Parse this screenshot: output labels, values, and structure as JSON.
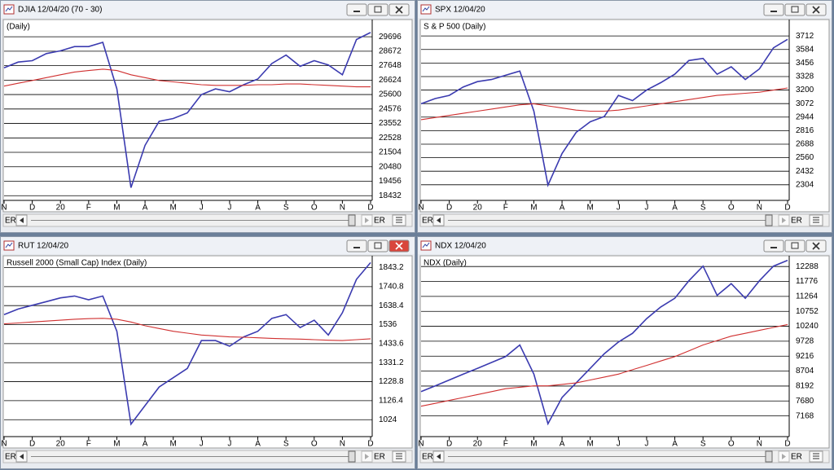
{
  "windows": [
    {
      "title": "DJIA 12/04/20 (70 - 30)",
      "scroll_labels": [
        "ER",
        "ER"
      ]
    },
    {
      "title": "SPX 12/04/20",
      "scroll_labels": [
        "ER",
        "ER"
      ]
    },
    {
      "title": "RUT 12/04/20",
      "scroll_labels": [
        "ER",
        "ER"
      ]
    },
    {
      "title": "NDX 12/04/20",
      "scroll_labels": [
        "ER",
        "ER"
      ]
    }
  ],
  "chart_data": [
    {
      "type": "line",
      "title": "(Daily)",
      "categories": [
        "N",
        null,
        "D",
        null,
        "20",
        null,
        "F",
        null,
        "M",
        null,
        "A",
        null,
        "M",
        null,
        "J",
        null,
        "J",
        null,
        "A",
        null,
        "S",
        null,
        "O",
        null,
        "N",
        null,
        "D"
      ],
      "series": [
        {
          "color": "#3b3bb0",
          "values": [
            27500,
            27900,
            28000,
            28500,
            28700,
            29000,
            29000,
            29300,
            26000,
            19000,
            22000,
            23700,
            23900,
            24300,
            25600,
            26000,
            25800,
            26300,
            26700,
            27800,
            28400,
            27600,
            28000,
            27700,
            27000,
            29500,
            30000
          ]
        },
        {
          "color": "#d03030",
          "values": [
            26200,
            26400,
            26600,
            26800,
            27000,
            27200,
            27300,
            27400,
            27300,
            27000,
            26800,
            26600,
            26500,
            26400,
            26300,
            26250,
            26250,
            26250,
            26300,
            26300,
            26350,
            26350,
            26300,
            26250,
            26200,
            26150,
            26150
          ]
        }
      ],
      "ylim": [
        18100,
        30800
      ],
      "yticks": [
        18432,
        19456,
        20480,
        21504,
        22528,
        23552,
        24576,
        25600,
        26624,
        27648,
        28672,
        29696
      ],
      "grid": true
    },
    {
      "type": "line",
      "title": "S & P 500 (Daily)",
      "categories": [
        "N",
        null,
        "D",
        null,
        "20",
        null,
        "F",
        null,
        "M",
        null,
        "A",
        null,
        "M",
        null,
        "J",
        null,
        "J",
        null,
        "A",
        null,
        "S",
        null,
        "O",
        null,
        "N",
        null,
        "D"
      ],
      "series": [
        {
          "color": "#3b3bb0",
          "values": [
            3070,
            3120,
            3150,
            3230,
            3280,
            3300,
            3340,
            3380,
            3000,
            2300,
            2600,
            2800,
            2900,
            2950,
            3150,
            3100,
            3200,
            3270,
            3350,
            3480,
            3500,
            3350,
            3420,
            3300,
            3400,
            3600,
            3680
          ]
        },
        {
          "color": "#d03030",
          "values": [
            2920,
            2940,
            2960,
            2980,
            3000,
            3020,
            3040,
            3060,
            3070,
            3050,
            3030,
            3010,
            3000,
            3000,
            3010,
            3030,
            3050,
            3070,
            3090,
            3110,
            3130,
            3150,
            3160,
            3170,
            3180,
            3200,
            3220
          ]
        }
      ],
      "ylim": [
        2156,
        3852
      ],
      "yticks": [
        2304,
        2432,
        2560,
        2688,
        2816,
        2944,
        3072,
        3200,
        3328,
        3456,
        3584,
        3712
      ],
      "grid": true
    },
    {
      "type": "line",
      "title": "Russell 2000 (Small Cap) Index (Daily)",
      "categories": [
        "N",
        null,
        "D",
        null,
        "20",
        null,
        "F",
        null,
        "M",
        null,
        "A",
        null,
        "M",
        null,
        "J",
        null,
        "J",
        null,
        "A",
        null,
        "S",
        null,
        "O",
        null,
        "N",
        null,
        "D"
      ],
      "series": [
        {
          "color": "#3b3bb0",
          "values": [
            1590,
            1620,
            1640,
            1660,
            1680,
            1690,
            1670,
            1690,
            1500,
            1000,
            1100,
            1200,
            1250,
            1300,
            1450,
            1450,
            1420,
            1470,
            1500,
            1570,
            1590,
            1520,
            1560,
            1480,
            1600,
            1780,
            1870
          ]
        },
        {
          "color": "#d03030",
          "values": [
            1540,
            1545,
            1550,
            1555,
            1560,
            1565,
            1568,
            1570,
            1565,
            1550,
            1530,
            1515,
            1500,
            1490,
            1480,
            1475,
            1470,
            1468,
            1465,
            1462,
            1460,
            1458,
            1455,
            1452,
            1450,
            1455,
            1460
          ]
        }
      ],
      "ylim": [
        933,
        1898
      ],
      "yticks": [
        1024,
        1126.4,
        1228.8,
        1331.2,
        1433.6,
        1536,
        1638.4,
        1740.8,
        1843.2
      ],
      "grid": true
    },
    {
      "type": "line",
      "title": "NDX (Daily)",
      "categories": [
        "N",
        null,
        "D",
        null,
        "20",
        null,
        "F",
        null,
        "M",
        null,
        "A",
        null,
        "M",
        null,
        "J",
        null,
        "J",
        null,
        "A",
        null,
        "S",
        null,
        "O",
        null,
        "N",
        null,
        "D"
      ],
      "series": [
        {
          "color": "#3b3bb0",
          "values": [
            8000,
            8200,
            8400,
            8600,
            8800,
            9000,
            9200,
            9600,
            8600,
            6900,
            7800,
            8300,
            8800,
            9300,
            9700,
            10000,
            10500,
            10900,
            11200,
            11800,
            12300,
            11300,
            11700,
            11200,
            11800,
            12300,
            12500
          ]
        },
        {
          "color": "#d03030",
          "values": [
            7500,
            7600,
            7700,
            7800,
            7900,
            8000,
            8100,
            8150,
            8200,
            8200,
            8250,
            8300,
            8400,
            8500,
            8600,
            8750,
            8900,
            9050,
            9200,
            9400,
            9600,
            9750,
            9900,
            10000,
            10100,
            10200,
            10300
          ]
        }
      ],
      "ylim": [
        6460,
        12600
      ],
      "yticks": [
        7168,
        7680,
        8192,
        8704,
        9216,
        9728,
        10240,
        10752,
        11264,
        11776,
        12288
      ],
      "grid": true
    }
  ]
}
